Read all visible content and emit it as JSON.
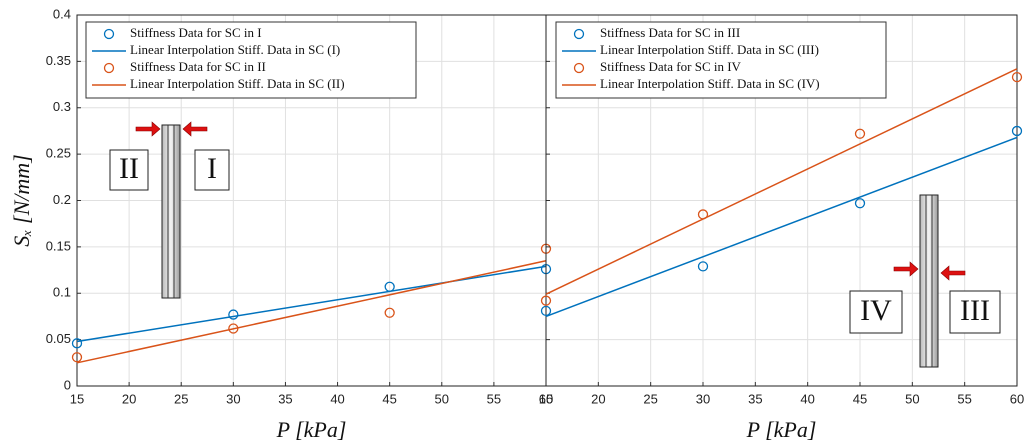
{
  "chart_data": [
    {
      "type": "line",
      "xlabel": "P [kPa]",
      "ylabel": "Sₓ [N/mm]",
      "xlim": [
        15,
        60
      ],
      "xticks": [
        15,
        20,
        25,
        30,
        35,
        40,
        45,
        50,
        55,
        60
      ],
      "ylim": [
        0,
        0.4
      ],
      "yticks": [
        0,
        0.05,
        0.1,
        0.15,
        0.2,
        0.25,
        0.3,
        0.35,
        0.4
      ],
      "grid": true,
      "legend": "upper left",
      "series": [
        {
          "name": "Stiffness Data for SC in I",
          "color": "#0072BD",
          "style": "marker",
          "x": [
            15,
            30,
            45,
            60
          ],
          "values": [
            0.046,
            0.077,
            0.107,
            0.126
          ]
        },
        {
          "name": "Linear Interpolation Stiff. Data in SC (I)",
          "color": "#0072BD",
          "style": "line",
          "x": [
            15,
            60
          ],
          "values": [
            0.048,
            0.129
          ]
        },
        {
          "name": "Stiffness Data for SC in II",
          "color": "#D95319",
          "style": "marker",
          "x": [
            15,
            30,
            45,
            60
          ],
          "values": [
            0.031,
            0.062,
            0.079,
            0.148
          ]
        },
        {
          "name": "Linear Interpolation Stiff. Data in SC (II)",
          "color": "#D95319",
          "style": "line",
          "x": [
            15,
            60
          ],
          "values": [
            0.025,
            0.135
          ]
        }
      ],
      "annotations": [
        "II",
        "I"
      ]
    },
    {
      "type": "line",
      "xlabel": "P [kPa]",
      "xlim": [
        15,
        60
      ],
      "xticks": [
        15,
        20,
        25,
        30,
        35,
        40,
        45,
        50,
        55,
        60
      ],
      "ylim": [
        0,
        0.4
      ],
      "yticks": [
        0,
        0.05,
        0.1,
        0.15,
        0.2,
        0.25,
        0.3,
        0.35,
        0.4
      ],
      "grid": true,
      "legend": "upper left",
      "series": [
        {
          "name": "Stiffness Data for SC in III",
          "color": "#0072BD",
          "style": "marker",
          "x": [
            15,
            30,
            45,
            60
          ],
          "values": [
            0.081,
            0.129,
            0.197,
            0.275
          ]
        },
        {
          "name": "Linear Interpolation Stiff. Data in SC (III)",
          "color": "#0072BD",
          "style": "line",
          "x": [
            15,
            60
          ],
          "values": [
            0.075,
            0.268
          ]
        },
        {
          "name": "Stiffness Data for SC in IV",
          "color": "#D95319",
          "style": "marker",
          "x": [
            15,
            30,
            45,
            60
          ],
          "values": [
            0.092,
            0.185,
            0.272,
            0.333
          ]
        },
        {
          "name": "Linear Interpolation Stiff. Data in SC (IV)",
          "color": "#D95319",
          "style": "line",
          "x": [
            15,
            60
          ],
          "values": [
            0.099,
            0.342
          ]
        }
      ],
      "annotations": [
        "IV",
        "III"
      ]
    }
  ]
}
